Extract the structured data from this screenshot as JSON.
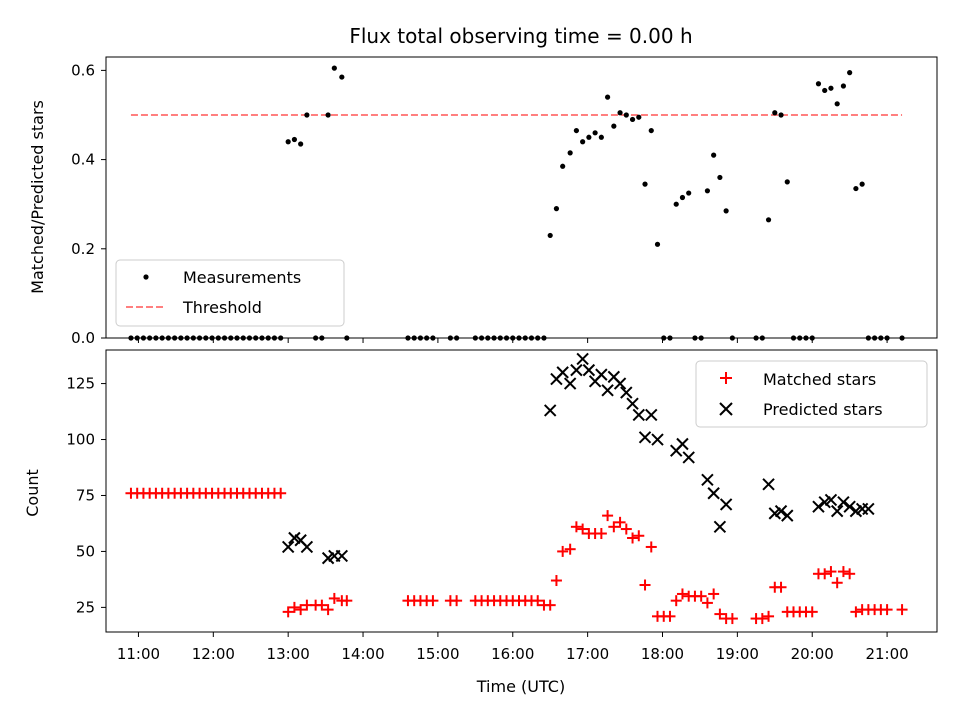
{
  "chart_data": [
    {
      "type": "scatter",
      "title": "Flux total observing time = 0.00 h",
      "xlabel": "",
      "ylabel": "Matched/Predicted stars",
      "ylim": [
        0,
        0.63
      ],
      "yticks": [
        0.0,
        0.2,
        0.4,
        0.6
      ],
      "ytick_labels": [
        "0.0",
        "0.2",
        "0.4",
        "0.6"
      ],
      "legend_position": "lower-left",
      "threshold": {
        "name": "Threshold",
        "value": 0.5,
        "x_range": [
          "10:54",
          "21:12"
        ],
        "color": "#ff7f7f"
      },
      "series": [
        {
          "name": "Measurements",
          "color": "#000000",
          "marker": "dot",
          "points": [
            [
              "10:54",
              0
            ],
            [
              "10:59",
              0
            ],
            [
              "11:04",
              0
            ],
            [
              "11:09",
              0
            ],
            [
              "11:14",
              0
            ],
            [
              "11:19",
              0
            ],
            [
              "11:24",
              0
            ],
            [
              "11:29",
              0
            ],
            [
              "11:34",
              0
            ],
            [
              "11:39",
              0
            ],
            [
              "11:44",
              0
            ],
            [
              "11:49",
              0
            ],
            [
              "11:54",
              0
            ],
            [
              "11:59",
              0
            ],
            [
              "12:04",
              0
            ],
            [
              "12:09",
              0
            ],
            [
              "12:14",
              0
            ],
            [
              "12:19",
              0
            ],
            [
              "12:24",
              0
            ],
            [
              "12:29",
              0
            ],
            [
              "12:34",
              0
            ],
            [
              "12:39",
              0
            ],
            [
              "12:44",
              0
            ],
            [
              "12:49",
              0
            ],
            [
              "12:54",
              0
            ],
            [
              "13:00",
              0.44
            ],
            [
              "13:05",
              0.445
            ],
            [
              "13:10",
              0.435
            ],
            [
              "13:15",
              0.5
            ],
            [
              "13:22",
              0
            ],
            [
              "13:27",
              0
            ],
            [
              "13:32",
              0.5
            ],
            [
              "13:37",
              0.605
            ],
            [
              "13:43",
              0.585
            ],
            [
              "13:47",
              0
            ],
            [
              "14:36",
              0
            ],
            [
              "14:41",
              0
            ],
            [
              "14:46",
              0
            ],
            [
              "14:51",
              0
            ],
            [
              "14:56",
              0
            ],
            [
              "15:10",
              0
            ],
            [
              "15:15",
              0
            ],
            [
              "15:30",
              0
            ],
            [
              "15:35",
              0
            ],
            [
              "15:40",
              0
            ],
            [
              "15:45",
              0
            ],
            [
              "15:50",
              0
            ],
            [
              "15:55",
              0
            ],
            [
              "16:00",
              0
            ],
            [
              "16:05",
              0
            ],
            [
              "16:10",
              0
            ],
            [
              "16:15",
              0
            ],
            [
              "16:20",
              0
            ],
            [
              "16:25",
              0
            ],
            [
              "16:30",
              0.23
            ],
            [
              "16:35",
              0.29
            ],
            [
              "16:40",
              0.385
            ],
            [
              "16:46",
              0.415
            ],
            [
              "16:51",
              0.465
            ],
            [
              "16:56",
              0.44
            ],
            [
              "17:01",
              0.45
            ],
            [
              "17:06",
              0.46
            ],
            [
              "17:11",
              0.45
            ],
            [
              "17:16",
              0.54
            ],
            [
              "17:21",
              0.475
            ],
            [
              "17:26",
              0.505
            ],
            [
              "17:31",
              0.5
            ],
            [
              "17:36",
              0.49
            ],
            [
              "17:41",
              0.495
            ],
            [
              "17:46",
              0.345
            ],
            [
              "17:51",
              0.465
            ],
            [
              "17:56",
              0.21
            ],
            [
              "18:01",
              0
            ],
            [
              "18:06",
              0
            ],
            [
              "18:11",
              0.3
            ],
            [
              "18:16",
              0.315
            ],
            [
              "18:21",
              0.325
            ],
            [
              "18:26",
              0
            ],
            [
              "18:31",
              0
            ],
            [
              "18:36",
              0.33
            ],
            [
              "18:41",
              0.41
            ],
            [
              "18:46",
              0.36
            ],
            [
              "18:51",
              0.285
            ],
            [
              "18:56",
              0
            ],
            [
              "19:15",
              0
            ],
            [
              "19:20",
              0
            ],
            [
              "19:25",
              0.265
            ],
            [
              "19:30",
              0.505
            ],
            [
              "19:35",
              0.5
            ],
            [
              "19:40",
              0.35
            ],
            [
              "19:45",
              0
            ],
            [
              "19:50",
              0
            ],
            [
              "19:55",
              0
            ],
            [
              "20:00",
              0
            ],
            [
              "20:05",
              0.57
            ],
            [
              "20:10",
              0.555
            ],
            [
              "20:15",
              0.56
            ],
            [
              "20:20",
              0.525
            ],
            [
              "20:25",
              0.565
            ],
            [
              "20:30",
              0.595
            ],
            [
              "20:35",
              0.335
            ],
            [
              "20:40",
              0.345
            ],
            [
              "20:45",
              0
            ],
            [
              "20:50",
              0
            ],
            [
              "20:55",
              0
            ],
            [
              "21:00",
              0
            ],
            [
              "21:12",
              0
            ]
          ]
        }
      ]
    },
    {
      "type": "scatter",
      "title": "",
      "xlabel": "Time (UTC)",
      "ylabel": "Count",
      "ylim": [
        14,
        140
      ],
      "yticks": [
        25,
        50,
        75,
        100,
        125
      ],
      "ytick_labels": [
        "25",
        "50",
        "75",
        "100",
        "125"
      ],
      "xticks": [
        "11:00",
        "12:00",
        "13:00",
        "14:00",
        "15:00",
        "16:00",
        "17:00",
        "18:00",
        "19:00",
        "20:00",
        "21:00"
      ],
      "xtick_labels": [
        "11:00",
        "12:00",
        "13:00",
        "14:00",
        "15:00",
        "16:00",
        "17:00",
        "18:00",
        "19:00",
        "20:00",
        "21:00"
      ],
      "xlim": [
        "10:34",
        "21:40"
      ],
      "legend_position": "upper-right",
      "series": [
        {
          "name": "Matched stars",
          "color": "#ff0000",
          "marker": "plus",
          "points": [
            [
              "10:54",
              76
            ],
            [
              "10:59",
              76
            ],
            [
              "11:04",
              76
            ],
            [
              "11:09",
              76
            ],
            [
              "11:14",
              76
            ],
            [
              "11:19",
              76
            ],
            [
              "11:24",
              76
            ],
            [
              "11:29",
              76
            ],
            [
              "11:34",
              76
            ],
            [
              "11:39",
              76
            ],
            [
              "11:44",
              76
            ],
            [
              "11:49",
              76
            ],
            [
              "11:54",
              76
            ],
            [
              "11:59",
              76
            ],
            [
              "12:04",
              76
            ],
            [
              "12:09",
              76
            ],
            [
              "12:14",
              76
            ],
            [
              "12:19",
              76
            ],
            [
              "12:24",
              76
            ],
            [
              "12:29",
              76
            ],
            [
              "12:34",
              76
            ],
            [
              "12:39",
              76
            ],
            [
              "12:44",
              76
            ],
            [
              "12:49",
              76
            ],
            [
              "12:54",
              76
            ],
            [
              "13:00",
              23
            ],
            [
              "13:05",
              25
            ],
            [
              "13:10",
              24
            ],
            [
              "13:15",
              26
            ],
            [
              "13:22",
              26
            ],
            [
              "13:27",
              26
            ],
            [
              "13:32",
              24
            ],
            [
              "13:37",
              29
            ],
            [
              "13:43",
              28
            ],
            [
              "13:47",
              28
            ],
            [
              "14:36",
              28
            ],
            [
              "14:41",
              28
            ],
            [
              "14:46",
              28
            ],
            [
              "14:51",
              28
            ],
            [
              "14:56",
              28
            ],
            [
              "15:10",
              28
            ],
            [
              "15:15",
              28
            ],
            [
              "15:30",
              28
            ],
            [
              "15:35",
              28
            ],
            [
              "15:40",
              28
            ],
            [
              "15:45",
              28
            ],
            [
              "15:50",
              28
            ],
            [
              "15:55",
              28
            ],
            [
              "16:00",
              28
            ],
            [
              "16:05",
              28
            ],
            [
              "16:10",
              28
            ],
            [
              "16:15",
              28
            ],
            [
              "16:20",
              28
            ],
            [
              "16:25",
              26
            ],
            [
              "16:30",
              26
            ],
            [
              "16:35",
              37
            ],
            [
              "16:40",
              50
            ],
            [
              "16:46",
              51
            ],
            [
              "16:51",
              61
            ],
            [
              "16:56",
              60
            ],
            [
              "17:01",
              58
            ],
            [
              "17:06",
              58
            ],
            [
              "17:11",
              58
            ],
            [
              "17:16",
              66
            ],
            [
              "17:21",
              61
            ],
            [
              "17:26",
              63
            ],
            [
              "17:31",
              60
            ],
            [
              "17:36",
              56
            ],
            [
              "17:41",
              57
            ],
            [
              "17:46",
              35
            ],
            [
              "17:51",
              52
            ],
            [
              "17:56",
              21
            ],
            [
              "18:01",
              21
            ],
            [
              "18:06",
              21
            ],
            [
              "18:11",
              28
            ],
            [
              "18:16",
              31
            ],
            [
              "18:21",
              30
            ],
            [
              "18:26",
              30
            ],
            [
              "18:31",
              30
            ],
            [
              "18:36",
              27
            ],
            [
              "18:41",
              31
            ],
            [
              "18:46",
              22
            ],
            [
              "18:51",
              20
            ],
            [
              "18:56",
              20
            ],
            [
              "19:15",
              20
            ],
            [
              "19:20",
              20
            ],
            [
              "19:25",
              21
            ],
            [
              "19:30",
              34
            ],
            [
              "19:35",
              34
            ],
            [
              "19:40",
              23
            ],
            [
              "19:45",
              23
            ],
            [
              "19:50",
              23
            ],
            [
              "19:55",
              23
            ],
            [
              "20:00",
              23
            ],
            [
              "20:05",
              40
            ],
            [
              "20:10",
              40
            ],
            [
              "20:15",
              41
            ],
            [
              "20:20",
              36
            ],
            [
              "20:25",
              41
            ],
            [
              "20:30",
              40
            ],
            [
              "20:35",
              23
            ],
            [
              "20:40",
              24
            ],
            [
              "20:45",
              24
            ],
            [
              "20:50",
              24
            ],
            [
              "20:55",
              24
            ],
            [
              "21:00",
              24
            ],
            [
              "21:12",
              24
            ]
          ]
        },
        {
          "name": "Predicted stars",
          "color": "#000000",
          "marker": "x",
          "points": [
            [
              "13:00",
              52
            ],
            [
              "13:05",
              56
            ],
            [
              "13:10",
              55
            ],
            [
              "13:15",
              52
            ],
            [
              "13:32",
              47
            ],
            [
              "13:37",
              48
            ],
            [
              "13:43",
              48
            ],
            [
              "16:30",
              113
            ],
            [
              "16:35",
              127
            ],
            [
              "16:40",
              130
            ],
            [
              "16:46",
              125
            ],
            [
              "16:51",
              131
            ],
            [
              "16:56",
              136
            ],
            [
              "17:01",
              131
            ],
            [
              "17:06",
              126
            ],
            [
              "17:11",
              129
            ],
            [
              "17:16",
              122
            ],
            [
              "17:21",
              128
            ],
            [
              "17:26",
              125
            ],
            [
              "17:31",
              121
            ],
            [
              "17:36",
              116
            ],
            [
              "17:41",
              111
            ],
            [
              "17:46",
              101
            ],
            [
              "17:51",
              111
            ],
            [
              "17:56",
              100
            ],
            [
              "18:11",
              95
            ],
            [
              "18:16",
              98
            ],
            [
              "18:21",
              92
            ],
            [
              "18:36",
              82
            ],
            [
              "18:41",
              76
            ],
            [
              "18:46",
              61
            ],
            [
              "18:51",
              71
            ],
            [
              "19:25",
              80
            ],
            [
              "19:30",
              67
            ],
            [
              "19:35",
              68
            ],
            [
              "19:40",
              66
            ],
            [
              "20:05",
              70
            ],
            [
              "20:10",
              72
            ],
            [
              "20:15",
              73
            ],
            [
              "20:20",
              68
            ],
            [
              "20:25",
              72
            ],
            [
              "20:30",
              70
            ],
            [
              "20:35",
              68
            ],
            [
              "20:40",
              69
            ],
            [
              "20:45",
              69
            ]
          ]
        }
      ]
    }
  ]
}
